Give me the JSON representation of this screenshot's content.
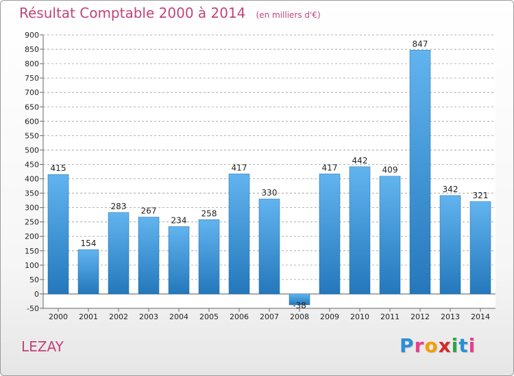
{
  "header": {
    "title": "Résultat Comptable 2000 à 2014",
    "subtitle": "(en milliers d'€)"
  },
  "footer": {
    "place": "LEZAY",
    "logo_text": "Proxiti",
    "logo_letters": [
      {
        "ch": "P",
        "color": "#2a8fd6"
      },
      {
        "ch": "r",
        "color": "#e83e8c"
      },
      {
        "ch": "o",
        "color": "#f29f05"
      },
      {
        "ch": "x",
        "color": "#d6282b"
      },
      {
        "ch": "i",
        "color": "#2aa54a"
      },
      {
        "ch": "t",
        "color": "#2a8fd6"
      },
      {
        "ch": "i",
        "color": "#e83e8c"
      }
    ]
  },
  "colors": {
    "bar_top": "#62b4ef",
    "bar_bottom": "#2478bb",
    "title": "#c0437a",
    "grid": "#9a9a9a"
  },
  "chart_data": {
    "type": "bar",
    "title": "Résultat Comptable 2000 à 2014",
    "subtitle": "(en milliers d'€)",
    "categories": [
      "2000",
      "2001",
      "2002",
      "2003",
      "2004",
      "2005",
      "2006",
      "2007",
      "2008",
      "2009",
      "2010",
      "2011",
      "2012",
      "2013",
      "2014"
    ],
    "values": [
      415,
      154,
      283,
      267,
      234,
      258,
      417,
      330,
      -38,
      417,
      442,
      409,
      847,
      342,
      321
    ],
    "value_labels": [
      "415",
      "154",
      "283",
      "267",
      "234",
      "258",
      "417",
      "330",
      "-38",
      "417",
      "442",
      "409",
      "847",
      "342",
      "321"
    ],
    "yticks": [
      -50,
      0,
      50,
      100,
      150,
      200,
      250,
      300,
      350,
      400,
      450,
      500,
      550,
      600,
      650,
      700,
      750,
      800,
      850,
      900
    ],
    "ylim": [
      -50,
      900
    ],
    "grid": "horizontal dashed",
    "xlabel": "",
    "ylabel": ""
  }
}
